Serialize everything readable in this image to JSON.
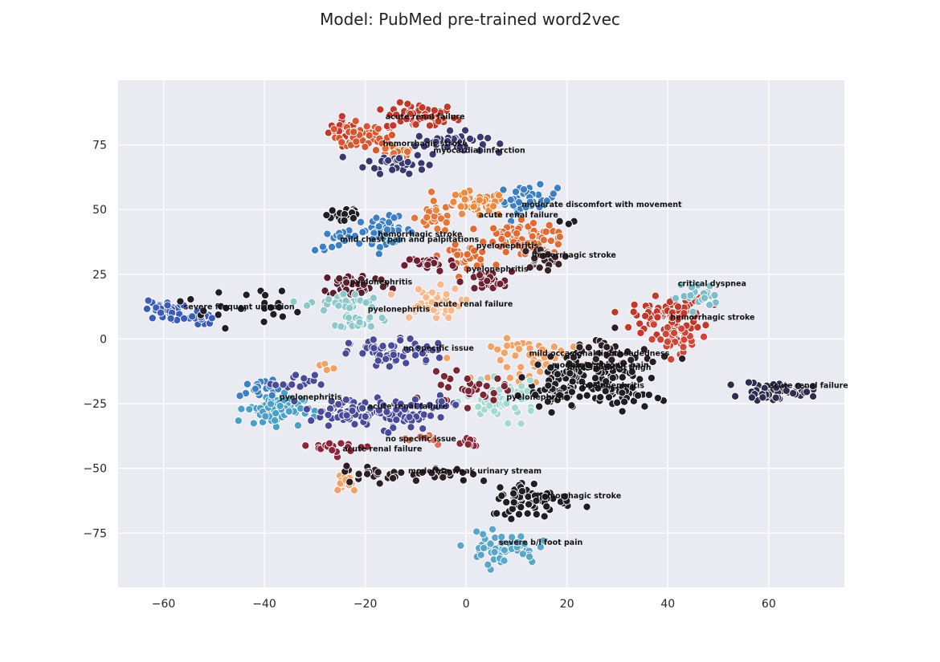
{
  "chart_data": {
    "type": "scatter",
    "title": "Model: PubMed pre-trained word2vec",
    "xlabel": "",
    "ylabel": "",
    "xlim": [
      -69,
      75
    ],
    "ylim": [
      -96,
      100
    ],
    "x_ticks": [
      -60,
      -40,
      -20,
      0,
      20,
      40,
      60
    ],
    "y_ticks": [
      -75,
      -50,
      -25,
      0,
      25,
      50,
      75
    ],
    "x_tick_labels": [
      "−60",
      "−40",
      "−20",
      "0",
      "20",
      "40",
      "60"
    ],
    "y_tick_labels": [
      "−75",
      "−50",
      "−25",
      "0",
      "25",
      "50",
      "75"
    ],
    "grid": true,
    "background": "#eaeaf2",
    "legend": "none",
    "clusters": [
      {
        "x": -24,
        "y": 81,
        "sx": 1.6,
        "sy": 2.5,
        "n": 28,
        "color": "#c0392b"
      },
      {
        "x": -20,
        "y": 78,
        "sx": 3,
        "sy": 2.5,
        "n": 45,
        "color": "#d9552f"
      },
      {
        "x": -9,
        "y": 86,
        "sx": 3.5,
        "sy": 2.5,
        "n": 55,
        "color": "#c0392b"
      },
      {
        "x": -14,
        "y": 72,
        "sx": 2,
        "sy": 2,
        "n": 25,
        "color": "#e26a33"
      },
      {
        "x": -14,
        "y": 68,
        "sx": 3,
        "sy": 2,
        "n": 35,
        "color": "#3b3870"
      },
      {
        "x": -3,
        "y": 76,
        "sx": 3.5,
        "sy": 2,
        "n": 45,
        "color": "#3b3870"
      },
      {
        "x": 12,
        "y": 54,
        "sx": 3,
        "sy": 2.5,
        "n": 40,
        "color": "#3c7fc4"
      },
      {
        "x": -16,
        "y": 42,
        "sx": 2.8,
        "sy": 2.5,
        "n": 40,
        "color": "#3c7fc4"
      },
      {
        "x": -24,
        "y": 38,
        "sx": 3,
        "sy": 2,
        "n": 20,
        "color": "#3c7fc4"
      },
      {
        "x": -24,
        "y": 48,
        "sx": 1.8,
        "sy": 2,
        "n": 25,
        "color": "#1e1e24"
      },
      {
        "x": -6,
        "y": 47,
        "sx": 2,
        "sy": 3,
        "n": 28,
        "color": "#e5763a"
      },
      {
        "x": 2,
        "y": 52,
        "sx": 3,
        "sy": 2.5,
        "n": 45,
        "color": "#ed8a3f"
      },
      {
        "x": 10,
        "y": 40,
        "sx": 3,
        "sy": 2.5,
        "n": 45,
        "color": "#e26a33"
      },
      {
        "x": 15,
        "y": 38,
        "sx": 2.5,
        "sy": 2.5,
        "n": 35,
        "color": "#e26a33"
      },
      {
        "x": 0,
        "y": 32,
        "sx": 2.5,
        "sy": 2,
        "n": 30,
        "color": "#e26a33"
      },
      {
        "x": 15,
        "y": 31,
        "sx": 2,
        "sy": 2,
        "n": 25,
        "color": "#3b2226"
      },
      {
        "x": 4,
        "y": 22,
        "sx": 2.5,
        "sy": 2,
        "n": 30,
        "color": "#6e1f32"
      },
      {
        "x": -7,
        "y": 29,
        "sx": 2.5,
        "sy": 1.5,
        "n": 25,
        "color": "#6e1f32"
      },
      {
        "x": -22,
        "y": 21,
        "sx": 3.5,
        "sy": 2.5,
        "n": 45,
        "color": "#5a1f2e"
      },
      {
        "x": -24,
        "y": 14,
        "sx": 3.5,
        "sy": 1.8,
        "n": 30,
        "color": "#8cc7c9"
      },
      {
        "x": -21,
        "y": 7,
        "sx": 2,
        "sy": 1.5,
        "n": 22,
        "color": "#8cc7c9"
      },
      {
        "x": -7,
        "y": 14,
        "sx": 3,
        "sy": 3,
        "n": 50,
        "color": "#f8b88b"
      },
      {
        "x": -60,
        "y": 11,
        "sx": 1.8,
        "sy": 2,
        "n": 30,
        "color": "#3b5cb8"
      },
      {
        "x": -53,
        "y": 8,
        "sx": 1.5,
        "sy": 1.5,
        "n": 15,
        "color": "#3b5cb8"
      },
      {
        "x": -45,
        "y": 13,
        "sx": 6,
        "sy": 4,
        "n": 25,
        "color": "#1e1e24"
      },
      {
        "x": -16,
        "y": -6,
        "sx": 3.5,
        "sy": 3,
        "n": 50,
        "color": "#4a4a9a"
      },
      {
        "x": -8,
        "y": -5,
        "sx": 2.5,
        "sy": 2,
        "n": 20,
        "color": "#4a4a9a"
      },
      {
        "x": 40,
        "y": 9,
        "sx": 3.5,
        "sy": 3.5,
        "n": 80,
        "color": "#c0392b"
      },
      {
        "x": 42,
        "y": 0,
        "sx": 3,
        "sy": 2.5,
        "n": 30,
        "color": "#d04535"
      },
      {
        "x": 46,
        "y": 17,
        "sx": 2,
        "sy": 2.5,
        "n": 25,
        "color": "#7fbcc9"
      },
      {
        "x": 15,
        "y": -8,
        "sx": 5,
        "sy": 4,
        "n": 60,
        "color": "#f2a266"
      },
      {
        "x": 23,
        "y": -14,
        "sx": 5,
        "sy": 3.5,
        "n": 90,
        "color": "#1e1e24"
      },
      {
        "x": 31,
        "y": -22,
        "sx": 3,
        "sy": 2.5,
        "n": 35,
        "color": "#1e1e24"
      },
      {
        "x": 7,
        "y": -24,
        "sx": 3.5,
        "sy": 3.5,
        "n": 55,
        "color": "#a5d8d0"
      },
      {
        "x": 18,
        "y": -22,
        "sx": 3,
        "sy": 3,
        "n": 35,
        "color": "#1e1e24"
      },
      {
        "x": 28,
        "y": -6,
        "sx": 5,
        "sy": 4,
        "n": 40,
        "color": "#2b1e24"
      },
      {
        "x": 0,
        "y": -20,
        "sx": 4,
        "sy": 3,
        "n": 30,
        "color": "#7a2735"
      },
      {
        "x": 60,
        "y": -20,
        "sx": 2.5,
        "sy": 1.8,
        "n": 40,
        "color": "#2f2d4e"
      },
      {
        "x": 66,
        "y": -20,
        "sx": 1.5,
        "sy": 1.2,
        "n": 18,
        "color": "#2f2d4e"
      },
      {
        "x": -38,
        "y": -27,
        "sx": 2.8,
        "sy": 3,
        "n": 80,
        "color": "#4aa0c6"
      },
      {
        "x": -41,
        "y": -20,
        "sx": 2,
        "sy": 2,
        "n": 20,
        "color": "#3c7fc4"
      },
      {
        "x": -34,
        "y": -17,
        "sx": 2,
        "sy": 1.5,
        "n": 15,
        "color": "#4a4a9a"
      },
      {
        "x": -25,
        "y": -28,
        "sx": 3.5,
        "sy": 2.5,
        "n": 45,
        "color": "#4a4a9a"
      },
      {
        "x": -14,
        "y": -29,
        "sx": 4,
        "sy": 3,
        "n": 60,
        "color": "#4a4a9a"
      },
      {
        "x": -6,
        "y": -25,
        "sx": 2,
        "sy": 1.5,
        "n": 12,
        "color": "#4a4a9a"
      },
      {
        "x": -28,
        "y": -11,
        "sx": 1,
        "sy": 1,
        "n": 5,
        "color": "#f2a266"
      },
      {
        "x": -24,
        "y": -42,
        "sx": 3,
        "sy": 1.5,
        "n": 18,
        "color": "#8b2638"
      },
      {
        "x": 0,
        "y": -40,
        "sx": 1.5,
        "sy": 1.3,
        "n": 10,
        "color": "#8b2638"
      },
      {
        "x": -9,
        "y": -38,
        "sx": 3,
        "sy": 1.5,
        "n": 10,
        "color": "#d9705a"
      },
      {
        "x": -24,
        "y": -55,
        "sx": 1.3,
        "sy": 2,
        "n": 16,
        "color": "#f2a266"
      },
      {
        "x": -18,
        "y": -52,
        "sx": 3,
        "sy": 1.5,
        "n": 25,
        "color": "#2b1e24"
      },
      {
        "x": -5,
        "y": -52,
        "sx": 3,
        "sy": 1.3,
        "n": 25,
        "color": "#2b1e24"
      },
      {
        "x": 13,
        "y": -62,
        "sx": 4,
        "sy": 3.5,
        "n": 70,
        "color": "#1e1e24"
      },
      {
        "x": 7,
        "y": -81,
        "sx": 3.5,
        "sy": 3,
        "n": 55,
        "color": "#5aa6c8"
      },
      {
        "x": 20,
        "y": 45,
        "sx": 1,
        "sy": 1,
        "n": 4,
        "color": "#1e1e24"
      }
    ],
    "annotations": [
      {
        "text": "acute renal failure",
        "x": -16,
        "y": 85
      },
      {
        "text": "hemorrhagic stroke",
        "x": -16.5,
        "y": 74.5
      },
      {
        "text": "myocardial infarction",
        "x": -6.5,
        "y": 72
      },
      {
        "text": "moderate discomfort with movement",
        "x": 11,
        "y": 51
      },
      {
        "text": "acute renal failure",
        "x": 2.5,
        "y": 47
      },
      {
        "text": "hemorrhagic stroke",
        "x": -17.5,
        "y": 39.5
      },
      {
        "text": "mild chest pain and palpitations",
        "x": -25,
        "y": 37.5
      },
      {
        "text": "pyelonephritis",
        "x": 2,
        "y": 35
      },
      {
        "text": "hemorrhagic stroke",
        "x": 13,
        "y": 31.5
      },
      {
        "text": "pyelonephritis",
        "x": 0,
        "y": 26
      },
      {
        "text": "pyelonephritis",
        "x": -23,
        "y": 21
      },
      {
        "text": "critical dyspnea",
        "x": 42,
        "y": 20.5
      },
      {
        "text": "severe frequent urination",
        "x": -56,
        "y": 11.5
      },
      {
        "text": "acute renal failure",
        "x": -6.5,
        "y": 12.5
      },
      {
        "text": "pyelonephritis",
        "x": -19.5,
        "y": 10.5
      },
      {
        "text": "hemorrhagic stroke",
        "x": 40.5,
        "y": 7.5
      },
      {
        "text": "no specific issue",
        "x": -12.5,
        "y": -4.5
      },
      {
        "text": "mild occasional lightheadedness",
        "x": 12.5,
        "y": -6.5
      },
      {
        "text": "moderate chronic pain",
        "x": 17,
        "y": -11
      },
      {
        "text": "mild sprained thigh",
        "x": 20,
        "y": -12
      },
      {
        "text": "pyelonephritis",
        "x": 23,
        "y": -19
      },
      {
        "text": "acute renal failure",
        "x": 60,
        "y": -19
      },
      {
        "text": "pyelonephritis",
        "x": -37,
        "y": -23.5
      },
      {
        "text": "pyelonephritis",
        "x": 8,
        "y": -23.5
      },
      {
        "text": "acute renal failure",
        "x": -19.5,
        "y": -27
      },
      {
        "text": "no specific issue",
        "x": -16,
        "y": -39.5
      },
      {
        "text": "acute renal failure",
        "x": -24.5,
        "y": -43.5
      },
      {
        "text": "moderate weak urinary stream",
        "x": -11.5,
        "y": -52
      },
      {
        "text": "hemorrhagic stroke",
        "x": 14,
        "y": -61.5
      },
      {
        "text": "severe b/l foot pain",
        "x": 6.5,
        "y": -79.5
      }
    ]
  }
}
